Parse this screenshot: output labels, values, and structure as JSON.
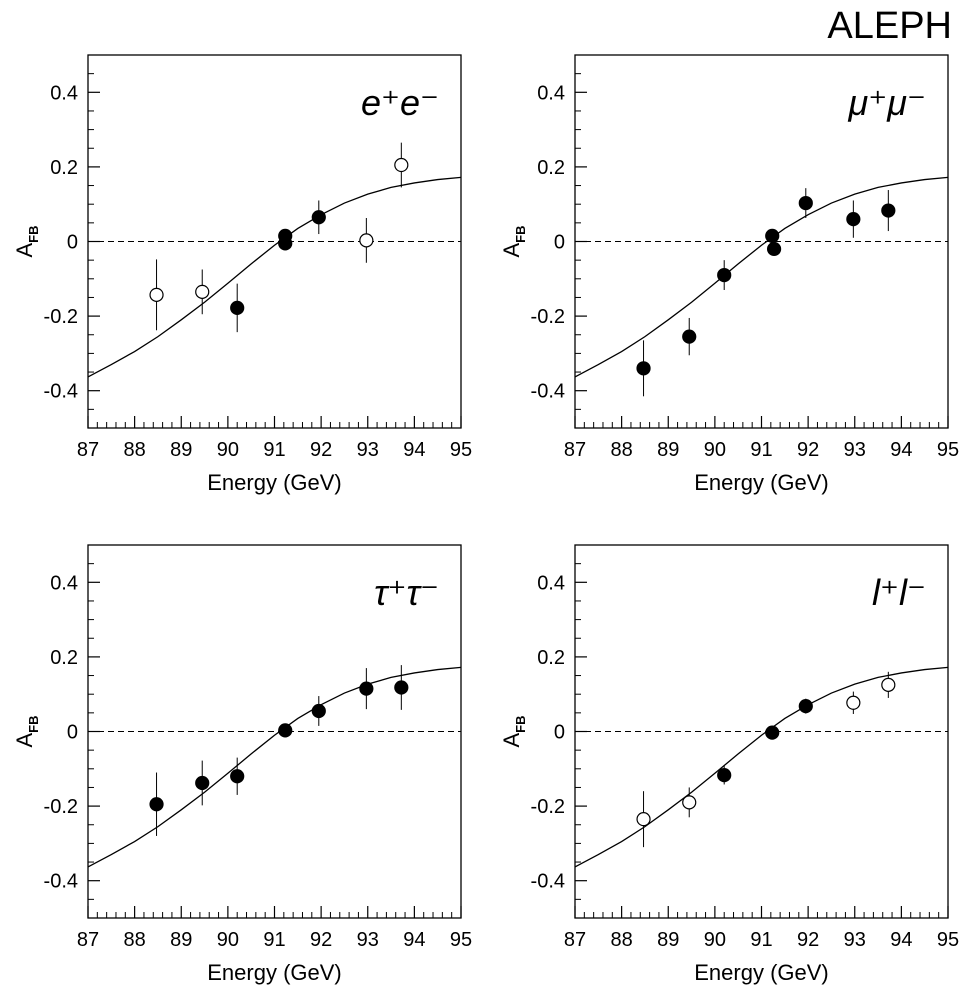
{
  "title": "ALEPH",
  "chart_data": [
    {
      "type": "scatter",
      "label": "e⁺e⁻",
      "xlabel": "Energy (GeV)",
      "ylabel": "A",
      "ylabel_subscript": "FB",
      "x": [
        88.47,
        89.45,
        90.2,
        91.23,
        91.23,
        91.95,
        92.97,
        93.72
      ],
      "values": [
        -0.143,
        -0.135,
        -0.178,
        0.015,
        -0.005,
        0.065,
        0.003,
        0.205
      ],
      "errors": [
        0.095,
        0.06,
        0.065,
        0.015,
        0.015,
        0.045,
        0.06,
        0.06
      ],
      "hollow": [
        true,
        true,
        false,
        false,
        false,
        false,
        true,
        true
      ],
      "fit": {
        "x": [
          87,
          87.5,
          88,
          88.5,
          89,
          89.5,
          90,
          90.5,
          91,
          91.5,
          92,
          92.5,
          93,
          93.5,
          94,
          94.5,
          95
        ],
        "y": [
          -0.363,
          -0.33,
          -0.295,
          -0.255,
          -0.21,
          -0.163,
          -0.112,
          -0.06,
          -0.01,
          0.035,
          0.072,
          0.103,
          0.127,
          0.145,
          0.157,
          0.166,
          0.172
        ]
      },
      "xlim": [
        87,
        95
      ],
      "xticks": [
        87,
        88,
        89,
        90,
        91,
        92,
        93,
        94,
        95
      ],
      "ylim": [
        -0.5,
        0.5
      ],
      "yticks": [
        -0.4,
        -0.2,
        0,
        0.2,
        0.4
      ],
      "zero_line": true,
      "color": "#000000"
    },
    {
      "type": "scatter",
      "label": "μ⁺μ⁻",
      "xlabel": "Energy (GeV)",
      "ylabel": "A",
      "ylabel_subscript": "FB",
      "x": [
        88.47,
        89.45,
        90.2,
        91.23,
        91.27,
        91.95,
        92.97,
        93.72
      ],
      "values": [
        -0.34,
        -0.255,
        -0.09,
        0.015,
        -0.02,
        0.103,
        0.06,
        0.083
      ],
      "errors": [
        0.075,
        0.05,
        0.04,
        0.015,
        0.015,
        0.04,
        0.05,
        0.055
      ],
      "hollow": [
        false,
        false,
        false,
        false,
        false,
        false,
        false,
        false
      ],
      "fit": {
        "x": [
          87,
          87.5,
          88,
          88.5,
          89,
          89.5,
          90,
          90.5,
          91,
          91.5,
          92,
          92.5,
          93,
          93.5,
          94,
          94.5,
          95
        ],
        "y": [
          -0.363,
          -0.33,
          -0.295,
          -0.255,
          -0.21,
          -0.163,
          -0.112,
          -0.06,
          -0.01,
          0.035,
          0.072,
          0.103,
          0.127,
          0.145,
          0.157,
          0.166,
          0.172
        ]
      },
      "xlim": [
        87,
        95
      ],
      "xticks": [
        87,
        88,
        89,
        90,
        91,
        92,
        93,
        94,
        95
      ],
      "ylim": [
        -0.5,
        0.5
      ],
      "yticks": [
        -0.4,
        -0.2,
        0,
        0.2,
        0.4
      ],
      "zero_line": true,
      "color": "#000000"
    },
    {
      "type": "scatter",
      "label": "τ⁺τ⁻",
      "xlabel": "Energy (GeV)",
      "ylabel": "A",
      "ylabel_subscript": "FB",
      "x": [
        88.47,
        89.45,
        90.2,
        91.23,
        91.95,
        92.97,
        93.72
      ],
      "values": [
        -0.195,
        -0.138,
        -0.12,
        0.003,
        0.055,
        0.115,
        0.118
      ],
      "errors": [
        0.085,
        0.06,
        0.05,
        0.015,
        0.04,
        0.055,
        0.06
      ],
      "hollow": [
        false,
        false,
        false,
        false,
        false,
        false,
        false
      ],
      "fit": {
        "x": [
          87,
          87.5,
          88,
          88.5,
          89,
          89.5,
          90,
          90.5,
          91,
          91.5,
          92,
          92.5,
          93,
          93.5,
          94,
          94.5,
          95
        ],
        "y": [
          -0.363,
          -0.33,
          -0.295,
          -0.255,
          -0.21,
          -0.163,
          -0.112,
          -0.06,
          -0.01,
          0.035,
          0.072,
          0.103,
          0.127,
          0.145,
          0.157,
          0.166,
          0.172
        ]
      },
      "xlim": [
        87,
        95
      ],
      "xticks": [
        87,
        88,
        89,
        90,
        91,
        92,
        93,
        94,
        95
      ],
      "ylim": [
        -0.5,
        0.5
      ],
      "yticks": [
        -0.4,
        -0.2,
        0,
        0.2,
        0.4
      ],
      "zero_line": true,
      "color": "#000000"
    },
    {
      "type": "scatter",
      "label": "l⁺l⁻",
      "xlabel": "Energy (GeV)",
      "ylabel": "A",
      "ylabel_subscript": "FB",
      "x": [
        88.47,
        89.45,
        90.2,
        91.23,
        91.95,
        92.97,
        93.72
      ],
      "values": [
        -0.235,
        -0.19,
        -0.117,
        -0.003,
        0.068,
        0.077,
        0.125
      ],
      "errors": [
        0.075,
        0.04,
        0.025,
        0.01,
        0.02,
        0.03,
        0.035
      ],
      "hollow": [
        true,
        true,
        false,
        false,
        false,
        true,
        true
      ],
      "fit": {
        "x": [
          87,
          87.5,
          88,
          88.5,
          89,
          89.5,
          90,
          90.5,
          91,
          91.5,
          92,
          92.5,
          93,
          93.5,
          94,
          94.5,
          95
        ],
        "y": [
          -0.363,
          -0.33,
          -0.295,
          -0.255,
          -0.21,
          -0.163,
          -0.112,
          -0.06,
          -0.01,
          0.035,
          0.072,
          0.103,
          0.127,
          0.145,
          0.157,
          0.166,
          0.172
        ]
      },
      "xlim": [
        87,
        95
      ],
      "xticks": [
        87,
        88,
        89,
        90,
        91,
        92,
        93,
        94,
        95
      ],
      "ylim": [
        -0.5,
        0.5
      ],
      "yticks": [
        -0.4,
        -0.2,
        0,
        0.2,
        0.4
      ],
      "zero_line": true,
      "color": "#000000"
    }
  ]
}
